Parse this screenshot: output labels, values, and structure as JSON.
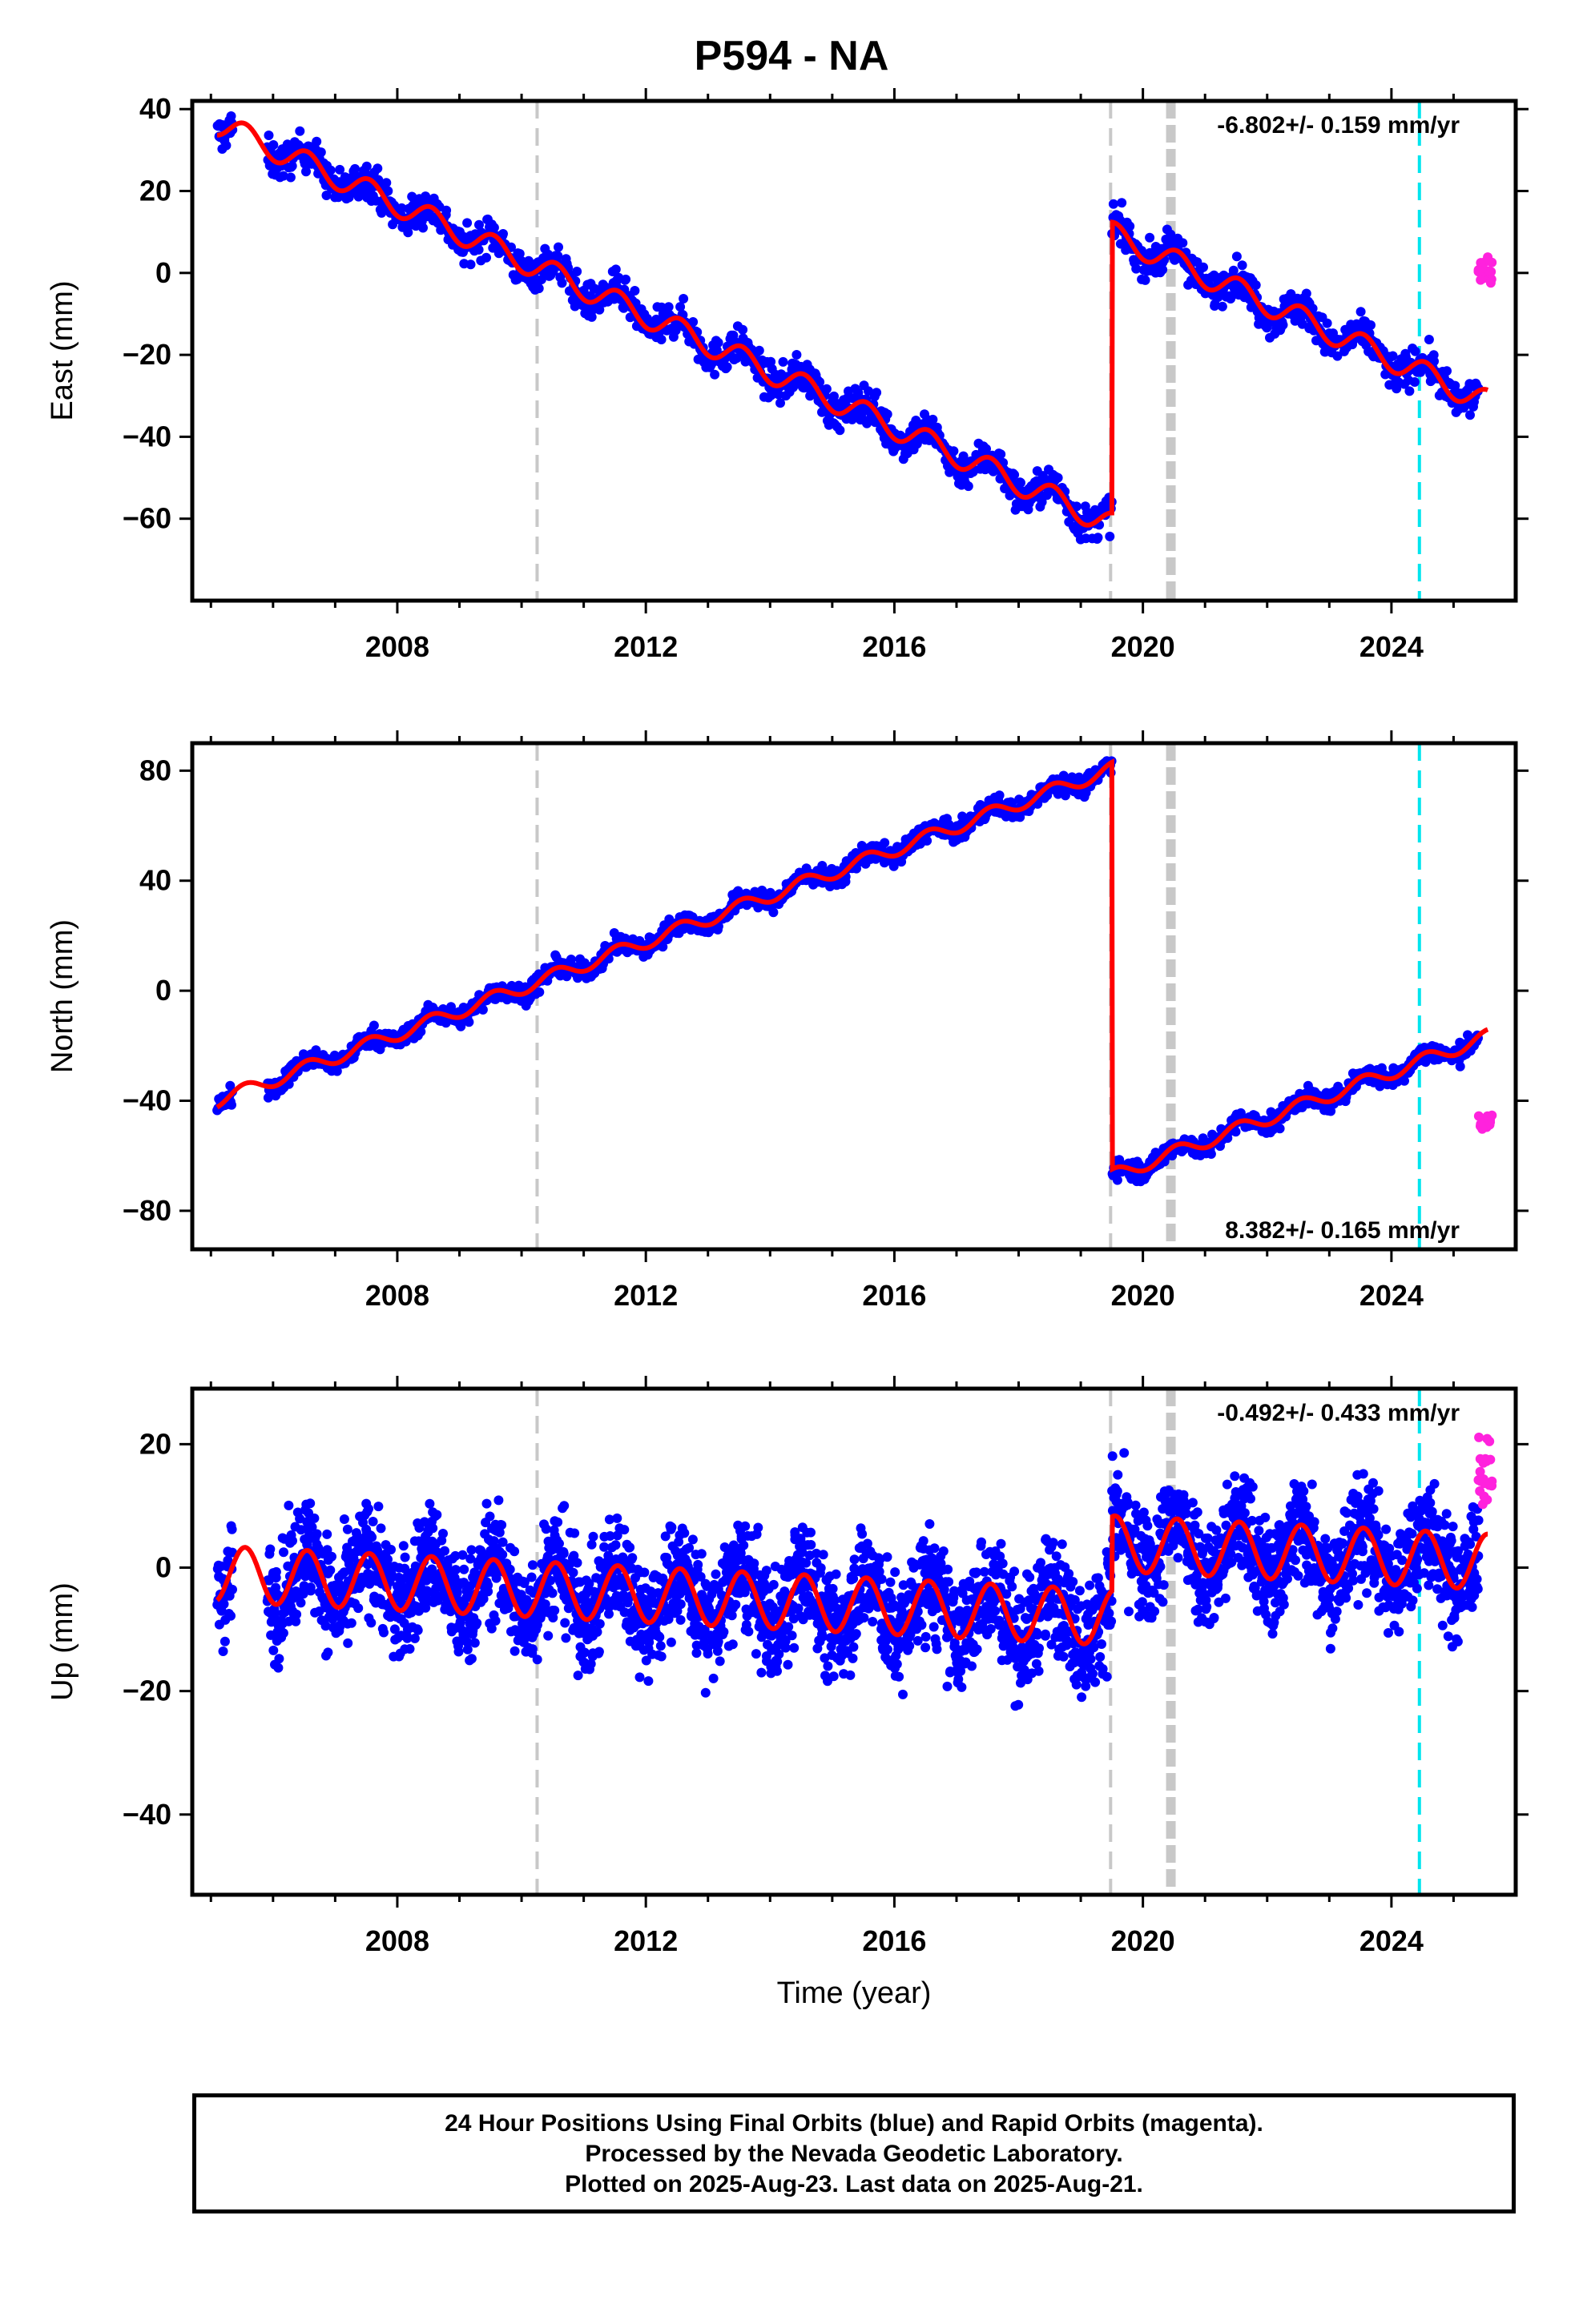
{
  "title": "P594 - NA",
  "x_label": "Time (year)",
  "footer": {
    "line1": "24 Hour Positions Using Final Orbits (blue) and Rapid Orbits (magenta).",
    "line2": "Processed by the Nevada Geodetic Laboratory.",
    "line3": "Plotted on 2025-Aug-23. Last data on 2025-Aug-21."
  },
  "colors": {
    "final_orbits": "#0000ff",
    "rapid_orbits": "#ff22dd",
    "model_fit": "#ff0000",
    "equipment_change": "#c8c8c8",
    "earthquake": "#00e5ee"
  },
  "chart_data": [
    {
      "type": "scatter",
      "ylabel": "East (mm)",
      "rate_text": "-6.802+/- 0.159 mm/yr",
      "xlim": [
        2004.7,
        2026.0
      ],
      "ylim": [
        -80,
        42
      ],
      "yticks": [
        -60,
        -40,
        -20,
        0,
        20,
        40
      ],
      "xticks": [
        2008,
        2012,
        2016,
        2020,
        2024
      ],
      "vlines_gray": [
        2010.25,
        2019.48
      ],
      "vline_gray_thick": 2020.45,
      "vline_cyan": 2024.45,
      "series": [
        {
          "name": "Final Orbits",
          "trend": {
            "start_year": 2005.1,
            "start_value": 36.5,
            "rate": -6.802
          },
          "offset_at": 2019.5,
          "offset_value": 71,
          "annual_amplitude": 3.0,
          "scatter_sd": 2.2
        },
        {
          "name": "Rapid Orbits",
          "x_range": [
            2025.4,
            2025.62
          ],
          "value": 0.5
        }
      ]
    },
    {
      "type": "scatter",
      "ylabel": "North (mm)",
      "rate_text": "8.382+/- 0.165 mm/yr",
      "xlim": [
        2004.7,
        2026.0
      ],
      "ylim": [
        -94,
        90
      ],
      "yticks": [
        -80,
        -40,
        0,
        40,
        80
      ],
      "xticks": [
        2008,
        2012,
        2016,
        2020,
        2024
      ],
      "vlines_gray": [
        2010.25,
        2019.48
      ],
      "vline_gray_thick": 2020.45,
      "vline_cyan": 2024.45,
      "series": [
        {
          "name": "Final Orbits",
          "trend": {
            "start_year": 2005.1,
            "start_value": -40,
            "rate": 8.382
          },
          "offset_at": 2019.5,
          "offset_value": -148,
          "annual_amplitude": 2.5,
          "scatter_sd": 1.8
        },
        {
          "name": "Rapid Orbits",
          "x_range": [
            2025.4,
            2025.62
          ],
          "value": -48
        }
      ]
    },
    {
      "type": "scatter",
      "ylabel": "Up (mm)",
      "rate_text": "-0.492+/- 0.433 mm/yr",
      "xlim": [
        2004.7,
        2026.0
      ],
      "ylim": [
        -53,
        29
      ],
      "yticks": [
        -40,
        -20,
        0,
        20
      ],
      "xticks": [
        2008,
        2012,
        2016,
        2020,
        2024
      ],
      "vlines_gray": [
        2010.25,
        2019.48
      ],
      "vline_gray_thick": 2020.45,
      "vline_cyan": 2024.45,
      "series": [
        {
          "name": "Final Orbits",
          "trend": {
            "start_year": 2005.1,
            "start_value": -1.0,
            "rate": -0.492
          },
          "offset_at": 2019.5,
          "offset_value": 12,
          "annual_amplitude": 4.5,
          "scatter_sd": 4.5
        },
        {
          "name": "Rapid Orbits",
          "x_range": [
            2025.4,
            2025.62
          ],
          "value": 15
        }
      ]
    }
  ]
}
